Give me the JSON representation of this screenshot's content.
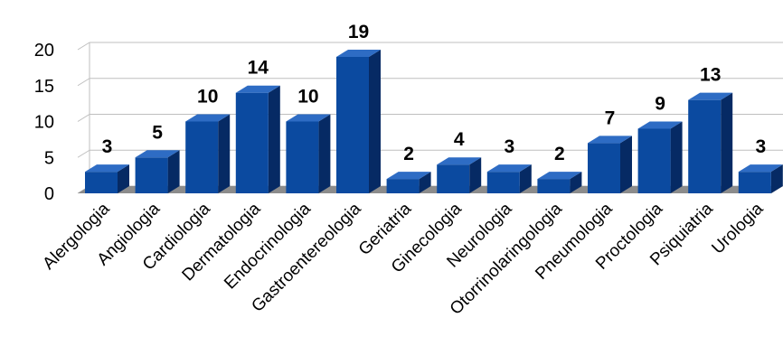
{
  "chart_data": {
    "type": "bar",
    "categories": [
      "Alergologia",
      "Angiologia",
      "Cardiologia",
      "Dermatologia",
      "Endocrinologia",
      "Gastroentereologia",
      "Geriatria",
      "Ginecologia",
      "Neurologia",
      "Otorrinolaringologia",
      "Pneumologia",
      "Proctologia",
      "Psiquiatria",
      "Urologia"
    ],
    "values": [
      3,
      5,
      10,
      14,
      10,
      19,
      2,
      4,
      3,
      2,
      7,
      9,
      13,
      3
    ],
    "yticks": [
      "0",
      "5",
      "10",
      "15",
      "20"
    ],
    "ylim": [
      0,
      20
    ],
    "grid": true,
    "legend": "none",
    "data_labels": true,
    "colors": {
      "bar_front": "#0b4aa0",
      "bar_top": "#2e6cc4",
      "bar_side": "#062a64",
      "floor": "#8c8c8c",
      "grid": "#bfbfbf"
    }
  }
}
